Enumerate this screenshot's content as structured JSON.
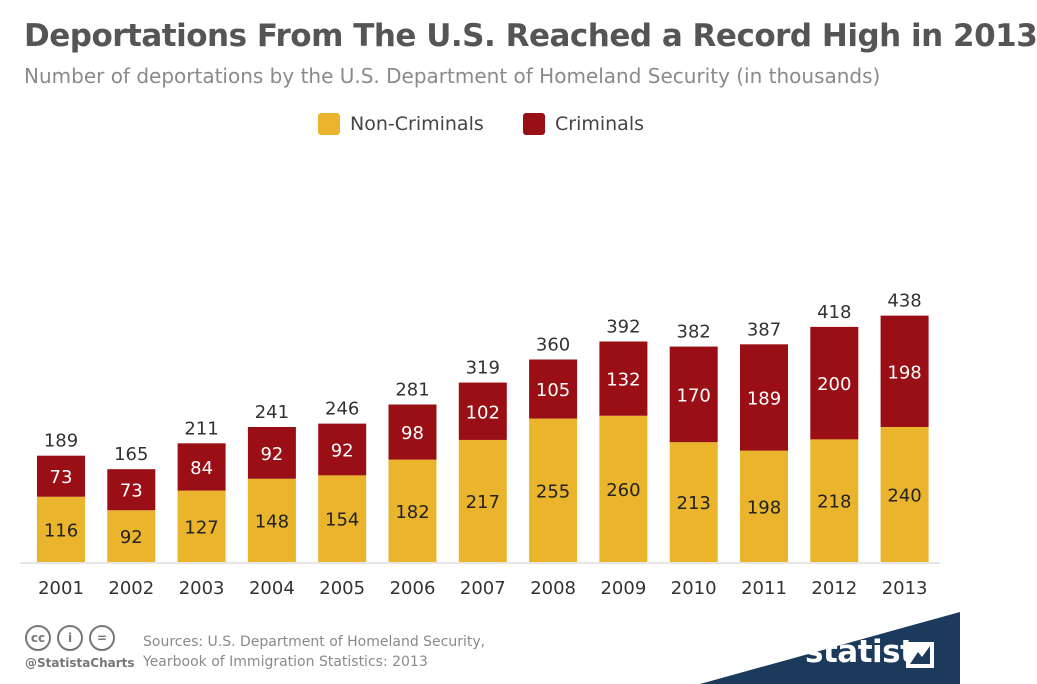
{
  "title": "Deportations From The U.S. Reached a Record High in 2013",
  "subtitle": "Number of deportations by the U.S. Department of Homeland Security (in thousands)",
  "legend": {
    "non_criminals": "Non-Criminals",
    "criminals": "Criminals"
  },
  "colors": {
    "non_criminals": "#eab52c",
    "criminals": "#9a0f16",
    "title": "#555555",
    "brand": "#1c3a5c"
  },
  "chart_data": {
    "type": "bar",
    "stacked": true,
    "categories": [
      "2001",
      "2002",
      "2003",
      "2004",
      "2005",
      "2006",
      "2007",
      "2008",
      "2009",
      "2010",
      "2011",
      "2012",
      "2013"
    ],
    "series": [
      {
        "name": "Non-Criminals",
        "values": [
          116,
          92,
          127,
          148,
          154,
          182,
          217,
          255,
          260,
          213,
          198,
          218,
          240
        ]
      },
      {
        "name": "Criminals",
        "values": [
          73,
          73,
          84,
          92,
          92,
          98,
          102,
          105,
          132,
          170,
          189,
          200,
          198
        ]
      }
    ],
    "totals": [
      189,
      165,
      211,
      241,
      246,
      281,
      319,
      360,
      392,
      382,
      387,
      418,
      438
    ],
    "ylim": [
      0,
      500
    ],
    "grid": false,
    "legend_position": "top-center"
  },
  "footer": {
    "handle": "@StatistaCharts",
    "sources": "Sources: U.S. Department of Homeland Security, Yearbook of Immigration Statistics: 2013",
    "brand": "statista",
    "cc_icons": [
      "cc-icon",
      "by-icon",
      "nd-icon"
    ],
    "cc_labels": [
      "cc",
      "i",
      "="
    ]
  }
}
